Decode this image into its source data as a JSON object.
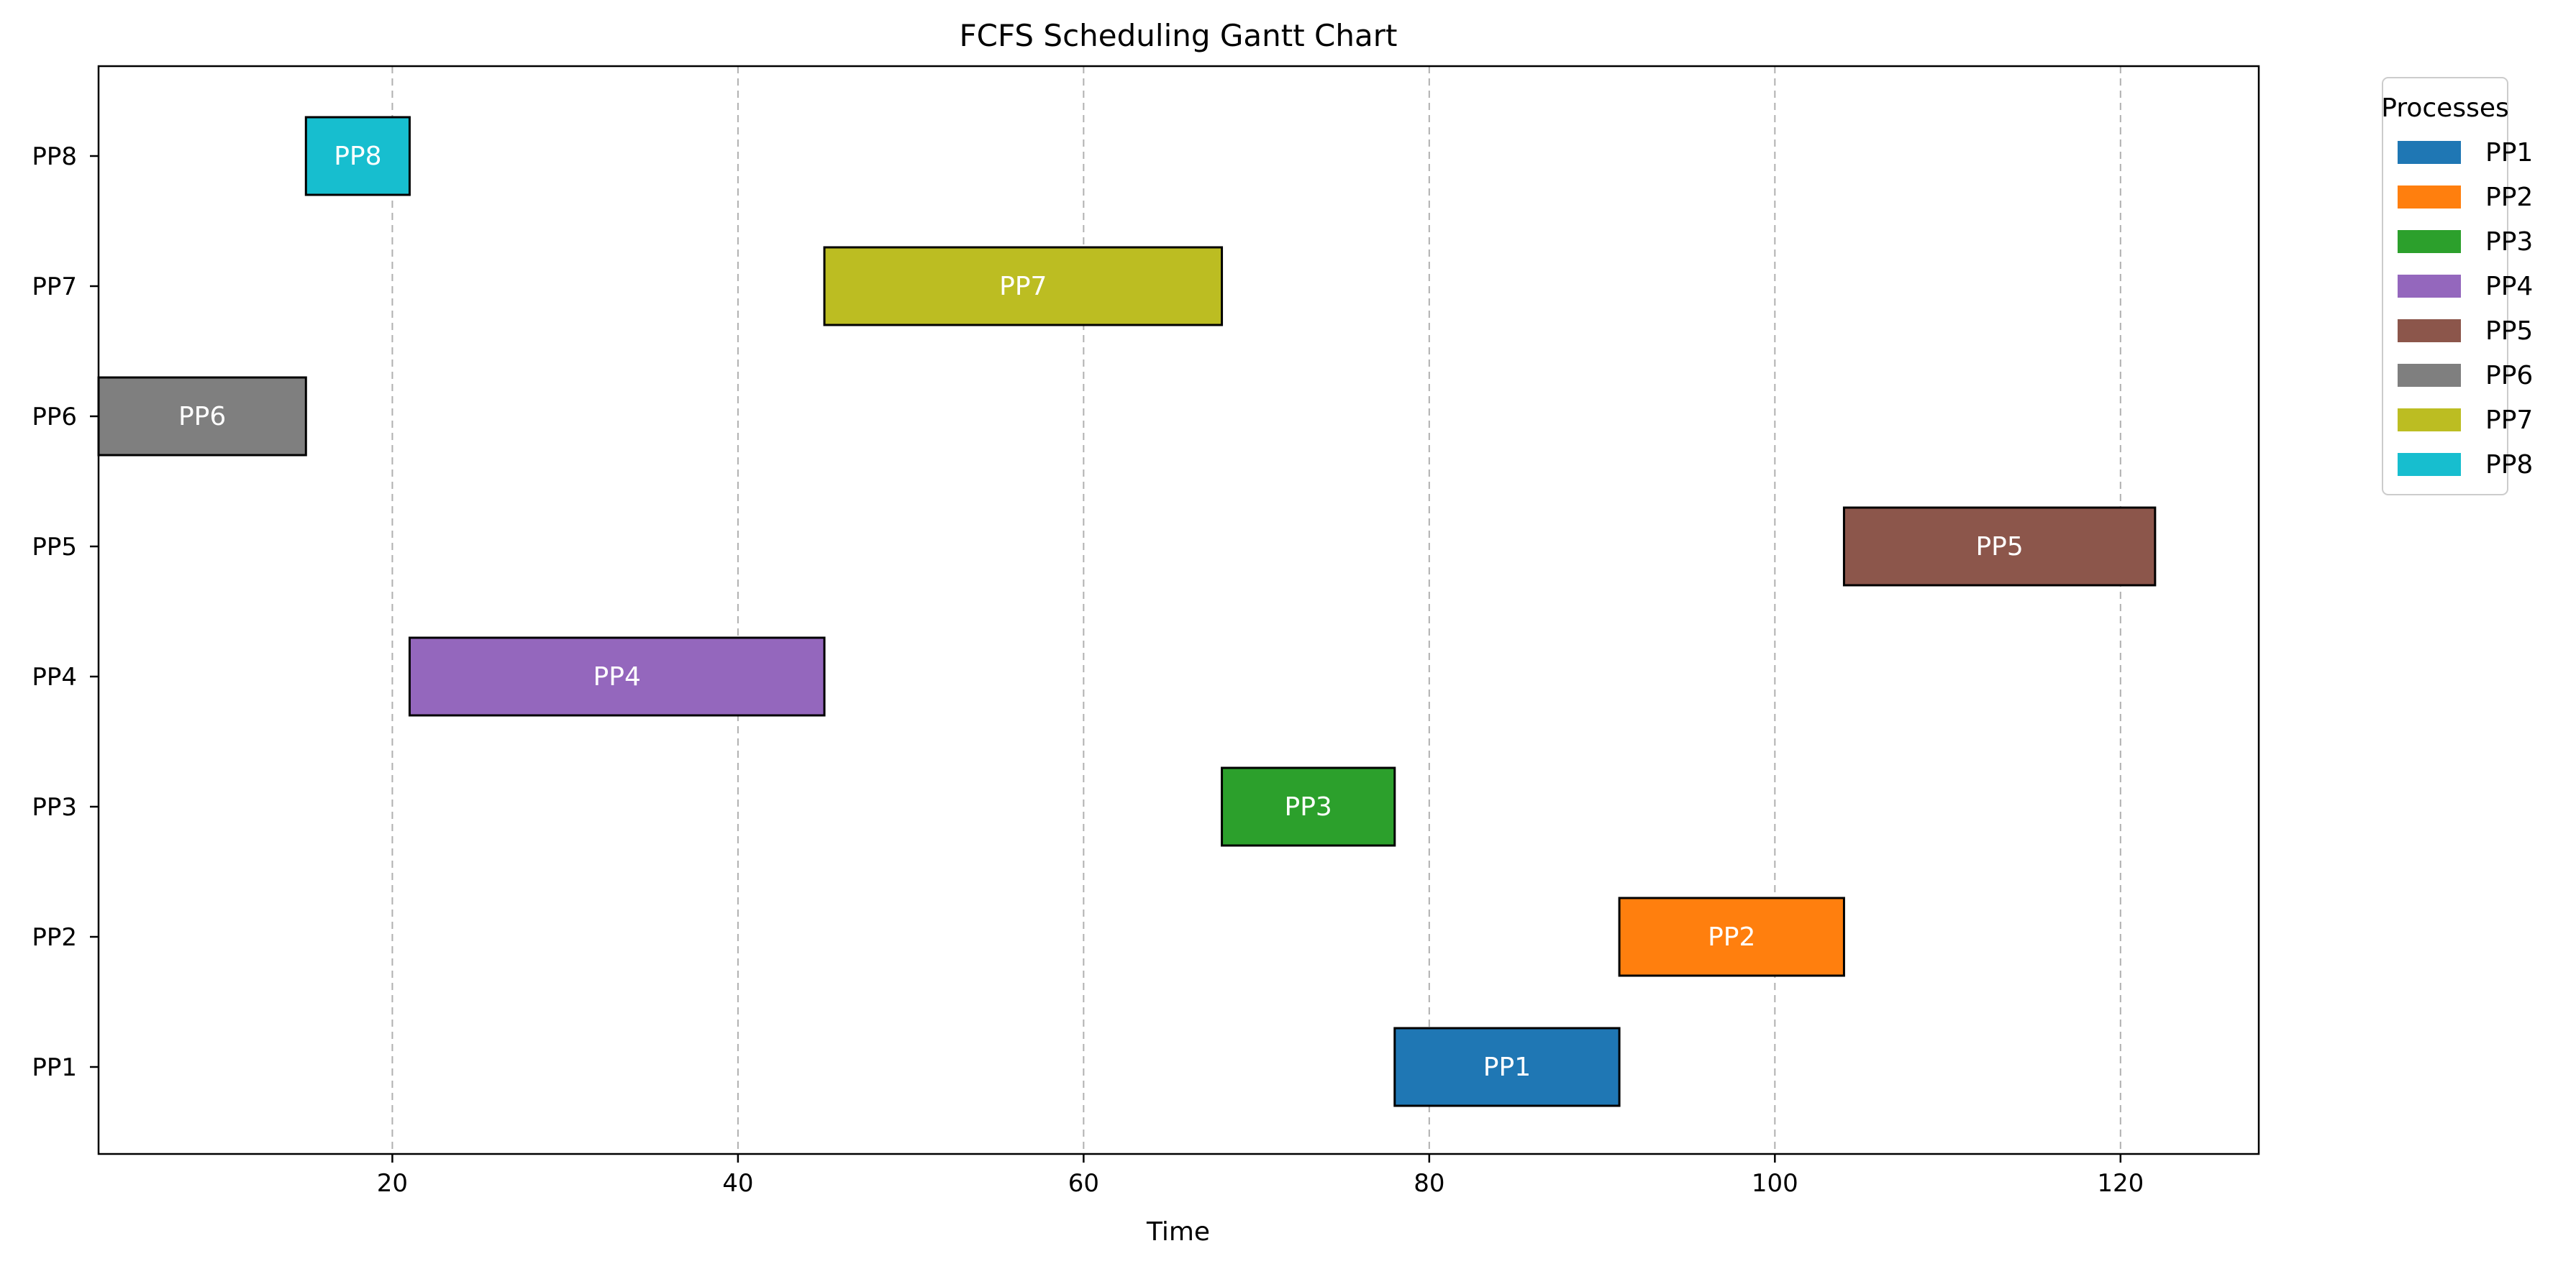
{
  "chart_data": {
    "type": "gantt",
    "title": "FCFS Scheduling Gantt Chart",
    "xlabel": "Time",
    "ylabel": "",
    "xlim": [
      3,
      128
    ],
    "x_ticks": [
      20,
      40,
      60,
      80,
      100,
      120
    ],
    "grid": "x-dashed",
    "categories": [
      "PP1",
      "PP2",
      "PP3",
      "PP4",
      "PP5",
      "PP6",
      "PP7",
      "PP8"
    ],
    "tasks": [
      {
        "name": "PP1",
        "start": 78,
        "end": 91,
        "color": "#1f77b4"
      },
      {
        "name": "PP2",
        "start": 91,
        "end": 104,
        "color": "#ff7f0e"
      },
      {
        "name": "PP3",
        "start": 68,
        "end": 78,
        "color": "#2ca02c"
      },
      {
        "name": "PP4",
        "start": 21,
        "end": 45,
        "color": "#9467bd"
      },
      {
        "name": "PP5",
        "start": 104,
        "end": 122,
        "color": "#8c564b"
      },
      {
        "name": "PP6",
        "start": 3,
        "end": 15,
        "color": "#7f7f7f"
      },
      {
        "name": "PP7",
        "start": 45,
        "end": 68,
        "color": "#bcbd22"
      },
      {
        "name": "PP8",
        "start": 15,
        "end": 21,
        "color": "#17becf"
      }
    ],
    "legend": {
      "title": "Processes",
      "placement": "outside-right-top",
      "entries": [
        "PP1",
        "PP2",
        "PP3",
        "PP4",
        "PP5",
        "PP6",
        "PP7",
        "PP8"
      ]
    }
  }
}
